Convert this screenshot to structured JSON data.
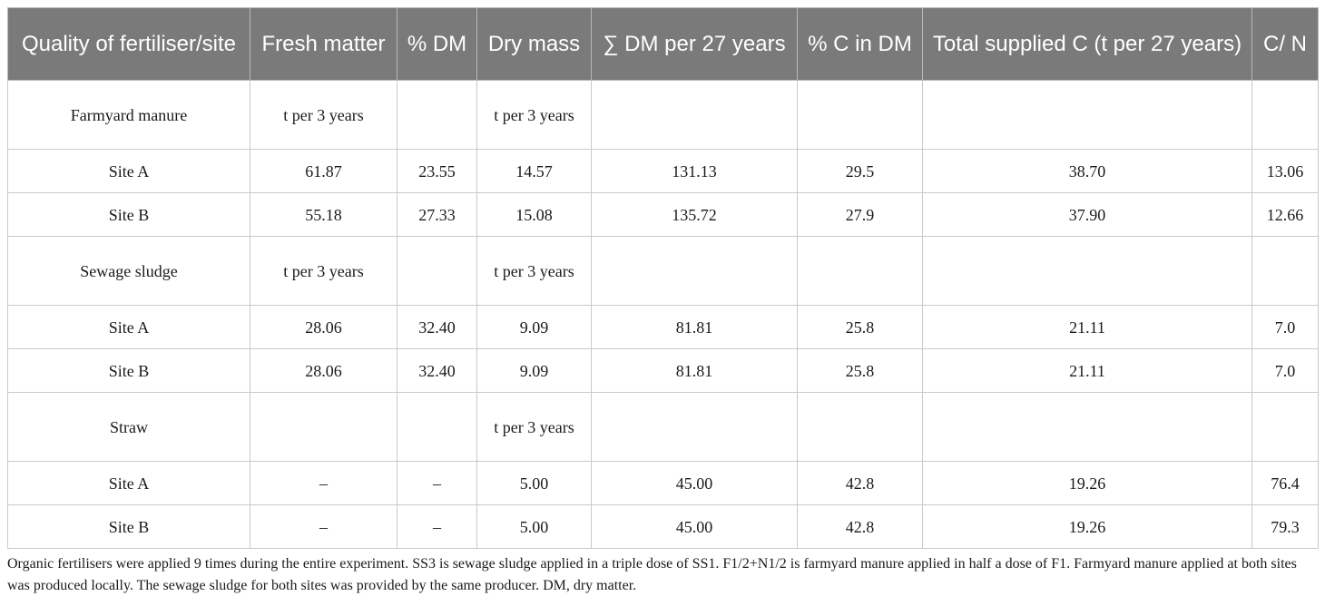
{
  "table": {
    "headers": [
      "Quality of fertiliser/site",
      "Fresh matter",
      "% DM",
      "Dry mass",
      "∑ DM per 27 years",
      "% C in DM",
      "Total supplied C (t per 27 years)",
      "C/ N"
    ],
    "rows": [
      {
        "kind": "grp",
        "cells": [
          "Farmyard manure",
          "t per 3 years",
          "",
          "t per 3 years",
          "",
          "",
          "",
          ""
        ]
      },
      {
        "kind": "row",
        "cells": [
          "Site A",
          "61.87",
          "23.55",
          "14.57",
          "131.13",
          "29.5",
          "38.70",
          "13.06"
        ]
      },
      {
        "kind": "row",
        "cells": [
          "Site B",
          "55.18",
          "27.33",
          "15.08",
          "135.72",
          "27.9",
          "37.90",
          "12.66"
        ]
      },
      {
        "kind": "grp",
        "cells": [
          "Sewage sludge",
          "t per 3 years",
          "",
          "t per 3 years",
          "",
          "",
          "",
          ""
        ]
      },
      {
        "kind": "row",
        "cells": [
          "Site A",
          "28.06",
          "32.40",
          "9.09",
          "81.81",
          "25.8",
          "21.11",
          "7.0"
        ]
      },
      {
        "kind": "row",
        "cells": [
          "Site B",
          "28.06",
          "32.40",
          "9.09",
          "81.81",
          "25.8",
          "21.11",
          "7.0"
        ]
      },
      {
        "kind": "grp",
        "cells": [
          "Straw",
          "",
          "",
          "t per 3 years",
          "",
          "",
          "",
          ""
        ]
      },
      {
        "kind": "row",
        "cells": [
          "Site A",
          "–",
          "–",
          "5.00",
          "45.00",
          "42.8",
          "19.26",
          "76.4"
        ]
      },
      {
        "kind": "row",
        "cells": [
          "Site B",
          "–",
          "–",
          "5.00",
          "45.00",
          "42.8",
          "19.26",
          "79.3"
        ]
      }
    ]
  },
  "footnote": "Organic fertilisers were applied 9 times during the entire experiment. SS3 is sewage sludge applied in a triple dose of SS1. F1/2+N1/2 is farmyard manure applied in half a dose of F1. Farmyard manure applied at both sites was produced locally. The sewage sludge for both sites was provided by the same producer. DM, dry matter."
}
